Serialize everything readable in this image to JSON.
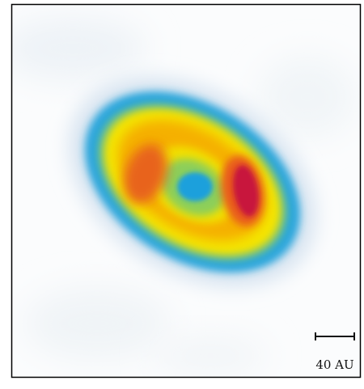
{
  "scale_bar": {
    "label": "40 AU"
  }
}
